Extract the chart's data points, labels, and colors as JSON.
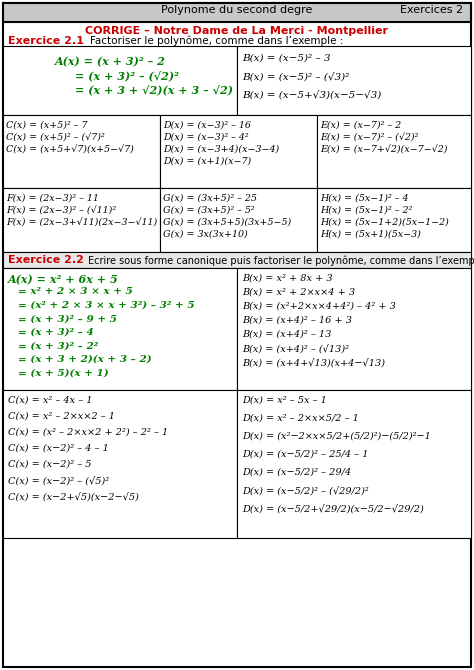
{
  "bg_color": "#ffffff",
  "header_bg": "#c8c8c8",
  "ex2_header_bg": "#e8e8e8",
  "border_color": "#000000",
  "red_color": "#cc0000",
  "green_color": "#008000",
  "black": "#000000",
  "header_title": "Polynome du second degre",
  "header_right": "Exercices 2",
  "corrige_line": "CORRIGE – Notre Dame de La Merci - Montpellier",
  "ex1_label": "Exercice 2.1",
  "ex1_instr": "Factoriser le polynôme, comme dans l’exemple :",
  "ex2_label": "Exercice 2.2",
  "ex2_instr": "Ecrire sous forme canonique puis factoriser le polynôme, comme dans l’exemple :",
  "ex1_A_lines": [
    "A(x) = (x + 3)² – 2",
    "= (x + 3)² – (√2)²",
    "= (x + 3 + √2)(x + 3 – √2)"
  ],
  "ex1_B_lines": [
    "B(x) = (x−5)² – 3",
    "B(x) = (x−5)² – (√3)²",
    "B(x) = (x−5+√3)(x−5−√3)"
  ],
  "ex1_C_lines": [
    "C(x) = (x+5)² – 7",
    "C(x) = (x+5)² – (√7)²",
    "C(x) = (x+5+√7)(x+5−√7)"
  ],
  "ex1_D_lines": [
    "D(x) = (x−3)² – 16",
    "D(x) = (x−3)² – 4²",
    "D(x) = (x−3+4)(x−3−4)",
    "D(x) = (x+1)(x−7)"
  ],
  "ex1_E_lines": [
    "E(x) = (x−7)² – 2",
    "E(x) = (x−7)² – (√2)²",
    "E(x) = (x−7+√2)(x−7−√2)"
  ],
  "ex1_F_lines": [
    "F(x) = (2x−3)² – 11",
    "F(x) = (2x−3)² – (√11)²",
    "F(x) = (2x−3+√11)(2x−3−√11)"
  ],
  "ex1_G_lines": [
    "G(x) = (3x+5)² – 25",
    "G(x) = (3x+5)² – 5²",
    "G(x) = (3x+5+5)(3x+5−5)",
    "G(x) = 3x(3x+10)"
  ],
  "ex1_H_lines": [
    "H(x) = (5x−1)² – 4",
    "H(x) = (5x−1)² – 2²",
    "H(x) = (5x−1+2)(5x−1−2)",
    "H(x) = (5x+1)(5x−3)"
  ],
  "ex2_A_lines": [
    "A(x) = x² + 6x + 5",
    "= x² + 2 × 3 × x + 5",
    "= (x² + 2 × 3 × x + 3²) – 3² + 5",
    "= (x + 3)² – 9 + 5",
    "= (x + 3)² – 4",
    "= (x + 3)² – 2²",
    "= (x + 3 + 2)(x + 3 – 2)",
    "= (x + 5)(x + 1)"
  ],
  "ex2_B_lines": [
    "B(x) = x² + 8x + 3",
    "B(x) = x² + 2×x×4 + 3",
    "B(x) = (x²+2×x×4+4²) – 4² + 3",
    "B(x) = (x+4)² – 16 + 3",
    "B(x) = (x+4)² – 13",
    "B(x) = (x+4)² – (√13)²",
    "B(x) = (x+4+√13)(x+4−√13)"
  ],
  "ex2_C_lines": [
    "C(x) = x² – 4x – 1",
    "C(x) = x² – 2×x×2 – 1",
    "C(x) = (x² – 2×x×2 + 2²) – 2² – 1",
    "C(x) = (x−2)² – 4 – 1",
    "C(x) = (x−2)² – 5",
    "C(x) = (x−2)² – (√5)²",
    "C(x) = (x−2+√5)(x−2−√5)"
  ],
  "ex2_D_lines": [
    "D(x) = x² – 5x – 1",
    "D(x) = x² – 2×x×5/2 – 1",
    "D(x) = (x²−2×x×5/2+(5/2)²)−(5/2)²−1",
    "D(x) = (x−5/2)² – 25/4 – 1",
    "D(x) = (x−5/2)² – 29/4",
    "D(x) = (x−5/2)² – (√29/2)²",
    "D(x) = (x−5/2+√29/2)(x−5/2−√29/2)"
  ]
}
